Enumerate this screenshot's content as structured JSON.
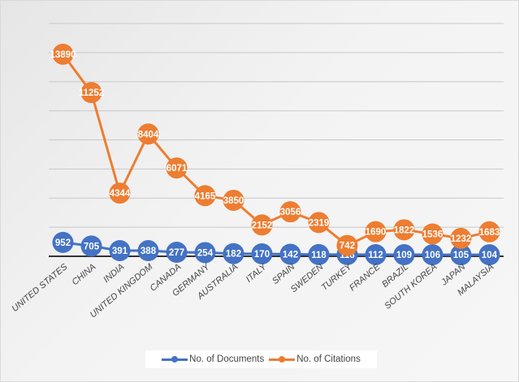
{
  "chart_data": {
    "type": "line",
    "title": "",
    "xlabel": "",
    "ylabel": "",
    "categories": [
      "UNITED STATES",
      "CHINA",
      "INDIA",
      "UNITED KINGDOM",
      "CANADA",
      "GERMANY",
      "AUSTRALIA",
      "ITALY",
      "SPAIN",
      "SWEDEN",
      "TURKEY",
      "FRANCE",
      "BRAZIL",
      "SOUTH KOREA",
      "JAPAN",
      "MALAYSIA"
    ],
    "series": [
      {
        "name": "No. of Documents",
        "color": "#4472c4",
        "values": [
          952,
          705,
          391,
          388,
          277,
          254,
          182,
          170,
          142,
          118,
          118,
          112,
          109,
          106,
          105,
          104
        ],
        "labels": [
          "952",
          "705",
          "391",
          "388",
          "277",
          "254",
          "182",
          "170",
          "142",
          "118",
          "118",
          "112",
          "109",
          "106",
          "105",
          "104"
        ]
      },
      {
        "name": "No. of Citations",
        "color": "#ed7d31",
        "values": [
          13890,
          11252,
          4344,
          8404,
          6071,
          4165,
          3850,
          2152,
          3056,
          2319,
          742,
          1690,
          1822,
          1536,
          1232,
          1683
        ],
        "labels": [
          "13890",
          "11252",
          "4344",
          "8404",
          "6071",
          "4165",
          "3850",
          "2152",
          "3056",
          "2319",
          "742",
          "1690",
          "1822",
          "1536",
          "1232",
          "1683"
        ]
      }
    ],
    "ylim": [
      0,
      16000
    ],
    "grid": true,
    "y_tick_labels_visible": false,
    "legend_position": "bottom"
  }
}
